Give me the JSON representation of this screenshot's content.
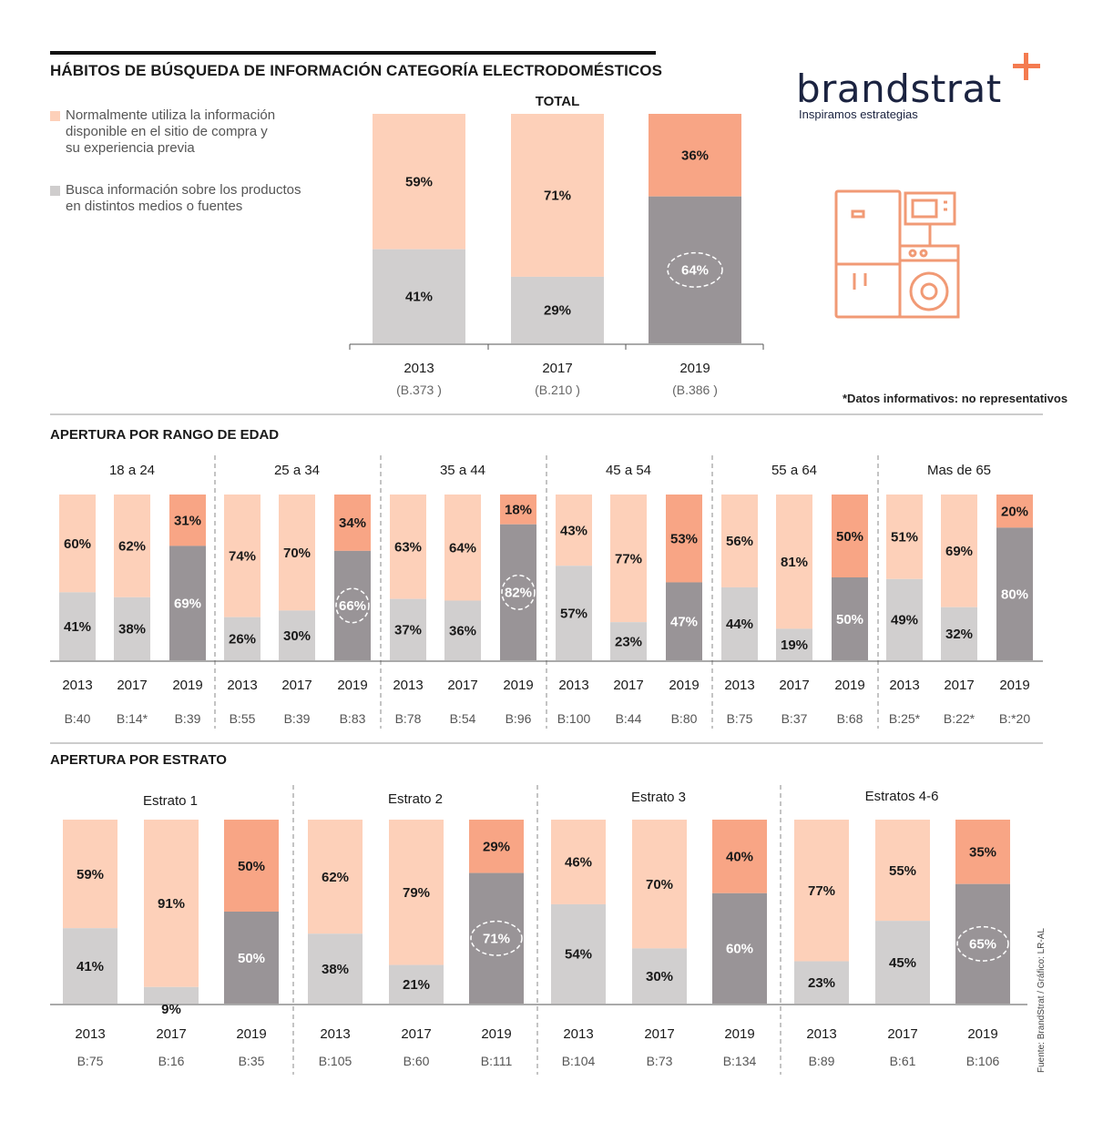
{
  "header": {
    "title": "HÁBITOS DE BÚSQUEDA DE INFORMACIÓN CATEGORÍA ELECTRODOMÉSTICOS",
    "note": "*Datos informativos: no representativos",
    "source": "Fuente: BrandStrat / Gráfico: LR-AL"
  },
  "brand": {
    "name": "brandstrat",
    "tagline": "Inspiramos estrategias",
    "accent": "#F47B50"
  },
  "legend": [
    {
      "label_lines": [
        "Normalmente utiliza la información",
        "disponible en el sitio de compra y",
        "su experiencia previa"
      ],
      "color": "#FDD0B9"
    },
    {
      "label_lines": [
        "Busca información sobre los productos",
        "en distintos medios o fuentes"
      ],
      "color": "#CFCDCD"
    }
  ],
  "colors": {
    "light_top": "#FDD0B9",
    "light_bottom": "#D1CFCF",
    "accent_top": "#F8A585",
    "accent_bottom": "#999497"
  },
  "chart_data": [
    {
      "type": "bar",
      "stacked": true,
      "title": "TOTAL",
      "categories": [
        "2013",
        "2017",
        "2019"
      ],
      "bases": [
        "(B.373 )",
        "(B.210 )",
        "(B.386 )"
      ],
      "series": [
        {
          "name": "Busca información sobre los productos en distintos medios o fuentes",
          "values": [
            41,
            29,
            64
          ],
          "labels": [
            "41%",
            "29%",
            "64%"
          ]
        },
        {
          "name": "Normalmente utiliza la información disponible en el sitio de compra y su experiencia previa",
          "values": [
            59,
            71,
            36
          ],
          "labels": [
            "59%",
            "71%",
            "36%"
          ]
        }
      ],
      "highlight": "2019",
      "circled": [
        "64%"
      ],
      "ylim": [
        0,
        100
      ]
    },
    {
      "type": "bar",
      "stacked": true,
      "title": "APERTURA POR RANGO DE EDAD",
      "groups": [
        {
          "name": "18 a 24",
          "years": [
            "2013",
            "2017",
            "2019"
          ],
          "bases": [
            "B:40",
            "B:14*",
            "B:39"
          ],
          "bottom": [
            41,
            38,
            69
          ],
          "top": [
            60,
            62,
            31
          ],
          "bottom_labels": [
            "41%",
            "38%",
            "69%"
          ],
          "top_labels": [
            "60%",
            "62%",
            "31%"
          ]
        },
        {
          "name": "25 a 34",
          "years": [
            "2013",
            "2017",
            "2019"
          ],
          "bases": [
            "B:55",
            "B:39",
            "B:83"
          ],
          "bottom": [
            26,
            30,
            66
          ],
          "top": [
            74,
            70,
            34
          ],
          "bottom_labels": [
            "26%",
            "30%",
            "66%"
          ],
          "top_labels": [
            "74%",
            "70%",
            "34%"
          ]
        },
        {
          "name": "35 a 44",
          "years": [
            "2013",
            "2017",
            "2019"
          ],
          "bases": [
            "B:78",
            "B:54",
            "B:96"
          ],
          "bottom": [
            37,
            36,
            82
          ],
          "top": [
            63,
            64,
            18
          ],
          "bottom_labels": [
            "37%",
            "36%",
            "82%"
          ],
          "top_labels": [
            "63%",
            "64%",
            "18%"
          ]
        },
        {
          "name": "45 a 54",
          "years": [
            "2013",
            "2017",
            "2019"
          ],
          "bases": [
            "B:100",
            "B:44",
            "B:80"
          ],
          "bottom": [
            57,
            23,
            47
          ],
          "top": [
            43,
            77,
            53
          ],
          "bottom_labels": [
            "57%",
            "23%",
            "47%"
          ],
          "top_labels": [
            "43%",
            "77%",
            "53%"
          ]
        },
        {
          "name": "55 a 64",
          "years": [
            "2013",
            "2017",
            "2019"
          ],
          "bases": [
            "B:75",
            "B:37",
            "B:68"
          ],
          "bottom": [
            44,
            19,
            50
          ],
          "top": [
            56,
            81,
            50
          ],
          "bottom_labels": [
            "44%",
            "19%",
            "50%"
          ],
          "top_labels": [
            "56%",
            "81%",
            "50%"
          ]
        },
        {
          "name": "Mas de 65",
          "years": [
            "2013",
            "2017",
            "2019"
          ],
          "bases": [
            "B:25*",
            "B:22*",
            "B:*20"
          ],
          "bottom": [
            49,
            32,
            80
          ],
          "top": [
            51,
            69,
            20
          ],
          "bottom_labels": [
            "49%",
            "32%",
            "80%"
          ],
          "top_labels": [
            "51%",
            "69%",
            "20%"
          ]
        }
      ],
      "circled": [
        "66%",
        "82%"
      ],
      "ylim": [
        0,
        100
      ]
    },
    {
      "type": "bar",
      "stacked": true,
      "title": "APERTURA POR ESTRATO",
      "groups": [
        {
          "name": "Estrato 1",
          "years": [
            "2013",
            "2017",
            "2019"
          ],
          "bases": [
            "B:75",
            "B:16",
            "B:35"
          ],
          "bottom": [
            41,
            9,
            50
          ],
          "top": [
            59,
            91,
            50
          ],
          "bottom_labels": [
            "41%",
            "9%",
            "50%"
          ],
          "top_labels": [
            "59%",
            "91%",
            "50%"
          ]
        },
        {
          "name": "Estrato 2",
          "years": [
            "2013",
            "2017",
            "2019"
          ],
          "bases": [
            "B:105",
            "B:60",
            "B:111"
          ],
          "bottom": [
            38,
            21,
            71
          ],
          "top": [
            62,
            79,
            29
          ],
          "bottom_labels": [
            "38%",
            "21%",
            "71%"
          ],
          "top_labels": [
            "62%",
            "79%",
            "29%"
          ]
        },
        {
          "name": "Estrato 3",
          "years": [
            "2013",
            "2017",
            "2019"
          ],
          "bases": [
            "B:104",
            "B:73",
            "B:134"
          ],
          "bottom": [
            54,
            30,
            60
          ],
          "top": [
            46,
            70,
            40
          ],
          "bottom_labels": [
            "54%",
            "30%",
            "60%"
          ],
          "top_labels": [
            "46%",
            "70%",
            "40%"
          ]
        },
        {
          "name": "Estratos 4-6",
          "years": [
            "2013",
            "2017",
            "2019"
          ],
          "bases": [
            "B:89",
            "B:61",
            "B:106"
          ],
          "bottom": [
            23,
            45,
            65
          ],
          "top": [
            77,
            55,
            35
          ],
          "bottom_labels": [
            "23%",
            "45%",
            "65%"
          ],
          "top_labels": [
            "77%",
            "55%",
            "35%"
          ]
        }
      ],
      "circled": [
        "71%",
        "65%"
      ],
      "ylim": [
        0,
        100
      ]
    }
  ]
}
